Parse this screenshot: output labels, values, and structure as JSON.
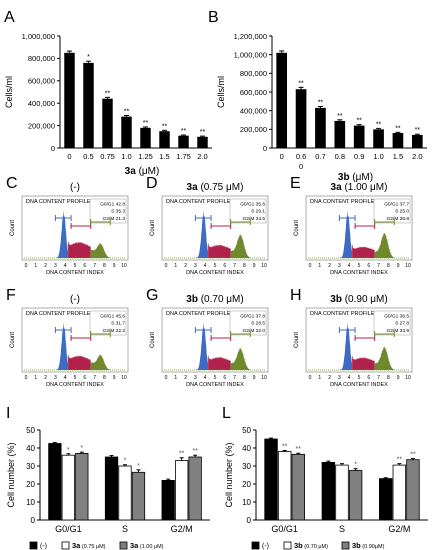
{
  "panels": {
    "A": "A",
    "B": "B",
    "C": "C",
    "D": "D",
    "E": "E",
    "F": "F",
    "G": "G",
    "H": "H",
    "I": "I",
    "L": "L"
  },
  "flow_common": {
    "title": "DNA CONTENT PROFILE",
    "xlabel": "DNA CONTENT INDEX",
    "ylabel": "Count",
    "ticks": [
      "0",
      "1",
      "2",
      "3",
      "4",
      "5",
      "6",
      "7",
      "8",
      "9",
      "10"
    ]
  },
  "colors": {
    "bar": "#000000",
    "g0g1": "#3c6cc4",
    "s": "#b0224a",
    "g2m": "#6f8a2c",
    "white_bar": "#ffffff",
    "gray_bar": "#808080"
  },
  "chart_data": [
    {
      "id": "A",
      "type": "bar",
      "categories": [
        "0",
        "0.5",
        "0.75",
        "1.0",
        "1.25",
        "1.5",
        "1.75",
        "2.0"
      ],
      "values": [
        850000,
        760000,
        440000,
        280000,
        180000,
        150000,
        110000,
        100000
      ],
      "errors": [
        15000,
        15000,
        12000,
        10000,
        8000,
        8000,
        6000,
        6000
      ],
      "annotations": [
        "",
        "*",
        "**",
        "**",
        "**",
        "**",
        "**",
        "**"
      ],
      "ylabel": "Cells/ml",
      "xlabel_compound": "3a",
      "xlabel_unit": " (μM)",
      "ylim": [
        0,
        1000000
      ],
      "yticks": [
        "0",
        "200,000",
        "400,000",
        "600,000",
        "800,000",
        "1,000,000"
      ]
    },
    {
      "id": "B",
      "type": "bar",
      "categories": [
        "0",
        "0.6",
        "0.7",
        "0.8",
        "0.9",
        "1.0",
        "1.5",
        "2.0"
      ],
      "values": [
        1020000,
        630000,
        430000,
        290000,
        240000,
        200000,
        160000,
        140000
      ],
      "errors": [
        20000,
        20000,
        15000,
        12000,
        10000,
        10000,
        8000,
        8000
      ],
      "annotations": [
        "",
        "**",
        "**",
        "**",
        "**",
        "**",
        "**",
        "**"
      ],
      "ylabel": "Cells/ml",
      "xlabel_compound": "3b",
      "xlabel_unit": " (μM)",
      "extra_tick": "0",
      "ylim": [
        0,
        1200000
      ],
      "yticks": [
        "0",
        "200,000",
        "400,000",
        "600,000",
        "800,000",
        "1,000,000",
        "1,200,000"
      ]
    },
    {
      "id": "C",
      "type": "histogram",
      "title_bold": "",
      "title_normal": "(-)",
      "stats": [
        "G0/G1 42.8",
        "S 35.3",
        "G2/M 21.3"
      ],
      "g1": 42.8,
      "s": 35.3,
      "g2m": 21.3
    },
    {
      "id": "D",
      "type": "histogram",
      "title_bold": "3a",
      "title_normal": " (0.75 μM)",
      "stats": [
        "G0/G1 35.6",
        "S 29.1",
        "G2/M 34.5"
      ],
      "g1": 35.6,
      "s": 29.1,
      "g2m": 34.5
    },
    {
      "id": "E",
      "type": "histogram",
      "title_bold": "3a",
      "title_normal": " (1.00 μM)",
      "stats": [
        "G0/G1 37.7",
        "S 25.0",
        "G2/M 36.8"
      ],
      "g1": 37.7,
      "s": 25.0,
      "g2m": 36.8
    },
    {
      "id": "F",
      "type": "histogram",
      "title_bold": "",
      "title_normal": "(-)",
      "stats": [
        "G0/G1 45.6",
        "S 31.7",
        "G2/M 22.2"
      ],
      "g1": 45.6,
      "s": 31.7,
      "g2m": 22.2
    },
    {
      "id": "G",
      "type": "histogram",
      "title_bold": "3b",
      "title_normal": " (0.70 μM)",
      "stats": [
        "G0/G1 37.8",
        "S 28.5",
        "G2/M 32.0"
      ],
      "g1": 37.8,
      "s": 28.5,
      "g2m": 32.0
    },
    {
      "id": "H",
      "type": "histogram",
      "title_bold": "3b",
      "title_normal": " (0.90 μM)",
      "stats": [
        "G0/G1 36.5",
        "S 27.8",
        "G2/M 33.9"
      ],
      "g1": 36.5,
      "s": 27.8,
      "g2m": 33.9
    },
    {
      "id": "I",
      "type": "bar",
      "categories": [
        "G0/G1",
        "S",
        "G2/M"
      ],
      "series": [
        {
          "name": "(-)",
          "bold": "",
          "unit": "",
          "values": [
            42.5,
            35.0,
            22.0
          ],
          "errors": [
            0.5,
            0.8,
            0.7
          ]
        },
        {
          "name": "3a (0.75 μM)",
          "bold": "3a",
          "unit": " (0.75 μM)",
          "values": [
            36.0,
            30.0,
            33.0
          ],
          "errors": [
            0.8,
            0.7,
            1.6
          ]
        },
        {
          "name": "3a (1.00 μM)",
          "bold": "3a",
          "unit": " (1.00 μM)",
          "values": [
            37.0,
            26.5,
            35.0
          ],
          "errors": [
            0.7,
            1.4,
            1.0
          ]
        }
      ],
      "annotations": [
        [
          "",
          "*",
          "*"
        ],
        [
          "",
          "*",
          "*"
        ],
        [
          "",
          "**",
          "**"
        ]
      ],
      "ylabel": "Cell number (%)",
      "ylim": [
        0,
        50
      ],
      "yticks": [
        "0",
        "10",
        "20",
        "30",
        "40",
        "50"
      ]
    },
    {
      "id": "L",
      "type": "bar",
      "categories": [
        "G0/G1",
        "S",
        "G2/M"
      ],
      "series": [
        {
          "name": "(-)",
          "bold": "",
          "unit": "",
          "values": [
            45.0,
            32.0,
            23.0
          ],
          "errors": [
            0.5,
            0.7,
            0.5
          ]
        },
        {
          "name": "3b (0.70 μM)",
          "bold": "3b",
          "unit": " (0.70 μM)",
          "values": [
            38.0,
            30.5,
            30.5
          ],
          "errors": [
            0.6,
            0.8,
            0.8
          ]
        },
        {
          "name": "3b (0.90μM)",
          "bold": "3b",
          "unit": " (0.90μM)",
          "values": [
            36.5,
            27.5,
            33.5
          ],
          "errors": [
            0.6,
            1.0,
            0.7
          ]
        }
      ],
      "annotations": [
        [
          "",
          "**",
          "**"
        ],
        [
          "",
          "",
          "*"
        ],
        [
          "",
          "**",
          "**"
        ]
      ],
      "ylabel": "Cell number (%)",
      "ylim": [
        0,
        50
      ],
      "yticks": [
        "0",
        "10",
        "20",
        "30",
        "40",
        "50"
      ]
    }
  ]
}
